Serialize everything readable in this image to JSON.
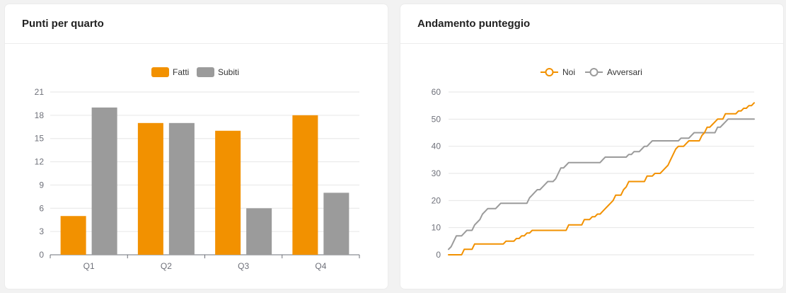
{
  "cards": [
    {
      "title": "Punti per quarto"
    },
    {
      "title": "Andamento punteggio"
    }
  ],
  "colors": {
    "primary": "#f29100",
    "secondary": "#9b9b9b",
    "grid": "#e6e6e6",
    "axis": "#6e7079"
  },
  "chart_data": [
    {
      "type": "bar",
      "title": "Punti per quarto",
      "categories": [
        "Q1",
        "Q2",
        "Q3",
        "Q4"
      ],
      "series": [
        {
          "name": "Fatti",
          "values": [
            5,
            17,
            16,
            18
          ]
        },
        {
          "name": "Subiti",
          "values": [
            19,
            17,
            6,
            8
          ]
        }
      ],
      "yticks": [
        0,
        3,
        6,
        9,
        12,
        15,
        18,
        21
      ],
      "ylim": [
        0,
        21
      ],
      "grid": true,
      "legend": "top-center"
    },
    {
      "type": "line",
      "title": "Andamento punteggio",
      "x": [
        0,
        1,
        2,
        3,
        4,
        5,
        6,
        7,
        8,
        9,
        10,
        11,
        12,
        13,
        14,
        15,
        16,
        17,
        18,
        19,
        20,
        21,
        22,
        23,
        24,
        25,
        26,
        27,
        28,
        29,
        30,
        31,
        32,
        33,
        34,
        35,
        36,
        37,
        38,
        39,
        40,
        41,
        42,
        43,
        44,
        45,
        46,
        47,
        48,
        49,
        50,
        51,
        52,
        53,
        54,
        55,
        56,
        57,
        58,
        59,
        60,
        61,
        62,
        63,
        64,
        65,
        66,
        67,
        68,
        69,
        70,
        71,
        72,
        73,
        74,
        75,
        76,
        77,
        78,
        79,
        80,
        81,
        82,
        83,
        84,
        85,
        86,
        87,
        88,
        89,
        90,
        91,
        92,
        93,
        94,
        95,
        96,
        97,
        98,
        99,
        100,
        101,
        102,
        103,
        104,
        105,
        106,
        107,
        108,
        109,
        110,
        111,
        112,
        113,
        114,
        115,
        116,
        117
      ],
      "series": [
        {
          "name": "Noi",
          "values": [
            0,
            0,
            0,
            0,
            0,
            0,
            2,
            2,
            2,
            2,
            4,
            4,
            4,
            4,
            4,
            4,
            4,
            4,
            4,
            4,
            4,
            4,
            5,
            5,
            5,
            5,
            6,
            6,
            7,
            7,
            8,
            8,
            9,
            9,
            9,
            9,
            9,
            9,
            9,
            9,
            9,
            9,
            9,
            9,
            9,
            9,
            11,
            11,
            11,
            11,
            11,
            11,
            13,
            13,
            13,
            14,
            14,
            15,
            15,
            16,
            17,
            18,
            19,
            20,
            22,
            22,
            22,
            24,
            25,
            27,
            27,
            27,
            27,
            27,
            27,
            27,
            29,
            29,
            29,
            30,
            30,
            30,
            31,
            32,
            33,
            35,
            37,
            39,
            40,
            40,
            40,
            41,
            42,
            42,
            42,
            42,
            42,
            44,
            45,
            47,
            47,
            48,
            49,
            50,
            50,
            50,
            52,
            52,
            52,
            52,
            52,
            53,
            53,
            54,
            54,
            55,
            55,
            56
          ]
        },
        {
          "name": "Avversari",
          "values": [
            2,
            3,
            5,
            7,
            7,
            7,
            8,
            9,
            9,
            9,
            11,
            12,
            13,
            15,
            16,
            17,
            17,
            17,
            17,
            18,
            19,
            19,
            19,
            19,
            19,
            19,
            19,
            19,
            19,
            19,
            19,
            21,
            22,
            23,
            24,
            24,
            25,
            26,
            27,
            27,
            27,
            28,
            30,
            32,
            32,
            33,
            34,
            34,
            34,
            34,
            34,
            34,
            34,
            34,
            34,
            34,
            34,
            34,
            34,
            35,
            36,
            36,
            36,
            36,
            36,
            36,
            36,
            36,
            36,
            37,
            37,
            38,
            38,
            38,
            39,
            40,
            40,
            41,
            42,
            42,
            42,
            42,
            42,
            42,
            42,
            42,
            42,
            42,
            42,
            43,
            43,
            43,
            43,
            44,
            45,
            45,
            45,
            45,
            45,
            45,
            45,
            45,
            45,
            47,
            47,
            48,
            49,
            50,
            50,
            50,
            50,
            50,
            50,
            50,
            50,
            50,
            50,
            50
          ]
        }
      ],
      "yticks": [
        0,
        10,
        20,
        30,
        40,
        50,
        60
      ],
      "ylim": [
        0,
        60
      ],
      "grid": true,
      "legend": "top-center"
    }
  ]
}
